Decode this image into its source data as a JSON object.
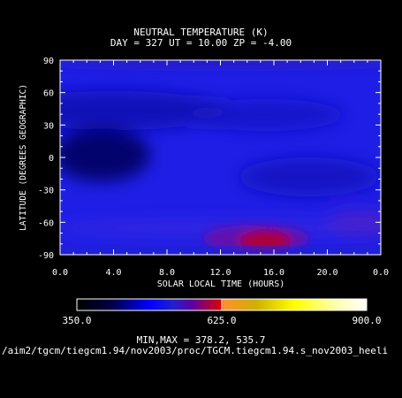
{
  "chart_data": {
    "type": "heatmap",
    "title": "NEUTRAL TEMPERATURE (K)",
    "subtitle": "DAY = 327  UT = 10.00  ZP =  -4.00",
    "xlabel": "SOLAR LOCAL TIME (HOURS)",
    "ylabel": "LATITUDE (DEGREES GEOGRAPHIC)",
    "x_tick_labels": [
      "0.0",
      "4.0",
      "8.0",
      "12.0",
      "16.0",
      "20.0",
      "0.0"
    ],
    "y_tick_labels": [
      "90",
      "60",
      "30",
      "0",
      "-30",
      "-60",
      "-90"
    ],
    "xlim": [
      0,
      24
    ],
    "ylim": [
      -90,
      90
    ],
    "colorbar": {
      "labels": [
        "350.0",
        "625.0",
        "900.0"
      ],
      "range": [
        350,
        900
      ]
    },
    "min": 378.2,
    "max": 535.7,
    "minmax_text": "MIN,MAX =        378.2,      535.7",
    "features": [
      {
        "name": "southern warm maximum",
        "x": 15.5,
        "y": -70,
        "value": 535.7
      },
      {
        "name": "cold minimum",
        "x": 3.0,
        "y": 2,
        "value": 378.2
      }
    ]
  },
  "footer_path": "/aim2/tgcm/tiegcm1.94/nov2003/proc/TGCM.tiegcm1.94.s_nov2003_heeli",
  "colors": {
    "background": "#000000",
    "text": "#ffffff",
    "field_base": "#1a1ae0"
  }
}
